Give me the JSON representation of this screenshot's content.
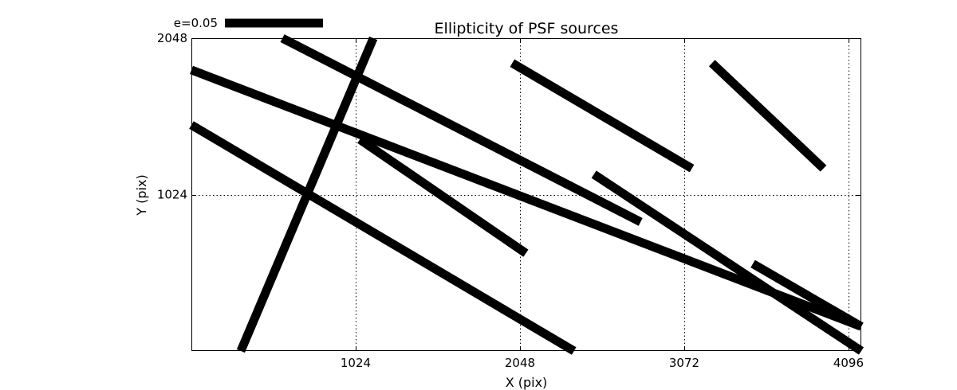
{
  "chart_data": {
    "type": "line",
    "title": "Ellipticity of PSF sources",
    "xlabel": "X (pix)",
    "ylabel": "Y (pix)",
    "xlim": [
      0,
      4176
    ],
    "ylim": [
      0,
      2048
    ],
    "xticks": [
      1024,
      2048,
      3072,
      4096
    ],
    "xtick_labels": [
      "1024",
      "2048",
      "3072",
      "4096"
    ],
    "yticks": [
      1024,
      2048
    ],
    "ytick_labels": [
      "1024",
      "2048"
    ],
    "grid": true,
    "key": {
      "label": "e=0.05",
      "placement": "top-left, above axes"
    },
    "segments": [
      {
        "x": [
          308,
          1134
        ],
        "y": [
          0,
          2048
        ]
      },
      {
        "x": [
          0,
          4176
        ],
        "y": [
          1840,
          160
        ]
      },
      {
        "x": [
          0,
          2385
        ],
        "y": [
          1480,
          0
        ]
      },
      {
        "x": [
          567,
          2800
        ],
        "y": [
          2048,
          845
        ]
      },
      {
        "x": [
          1050,
          2085
        ],
        "y": [
          1385,
          640
        ]
      },
      {
        "x": [
          2509,
          4176
        ],
        "y": [
          1157,
          0
        ]
      },
      {
        "x": [
          4176,
          3500
        ],
        "y": [
          160,
          571
        ]
      },
      {
        "x": [
          2000,
          3120
        ],
        "y": [
          1885,
          1195
        ]
      },
      {
        "x": [
          3245,
          3940
        ],
        "y": [
          1885,
          1195
        ]
      }
    ]
  }
}
